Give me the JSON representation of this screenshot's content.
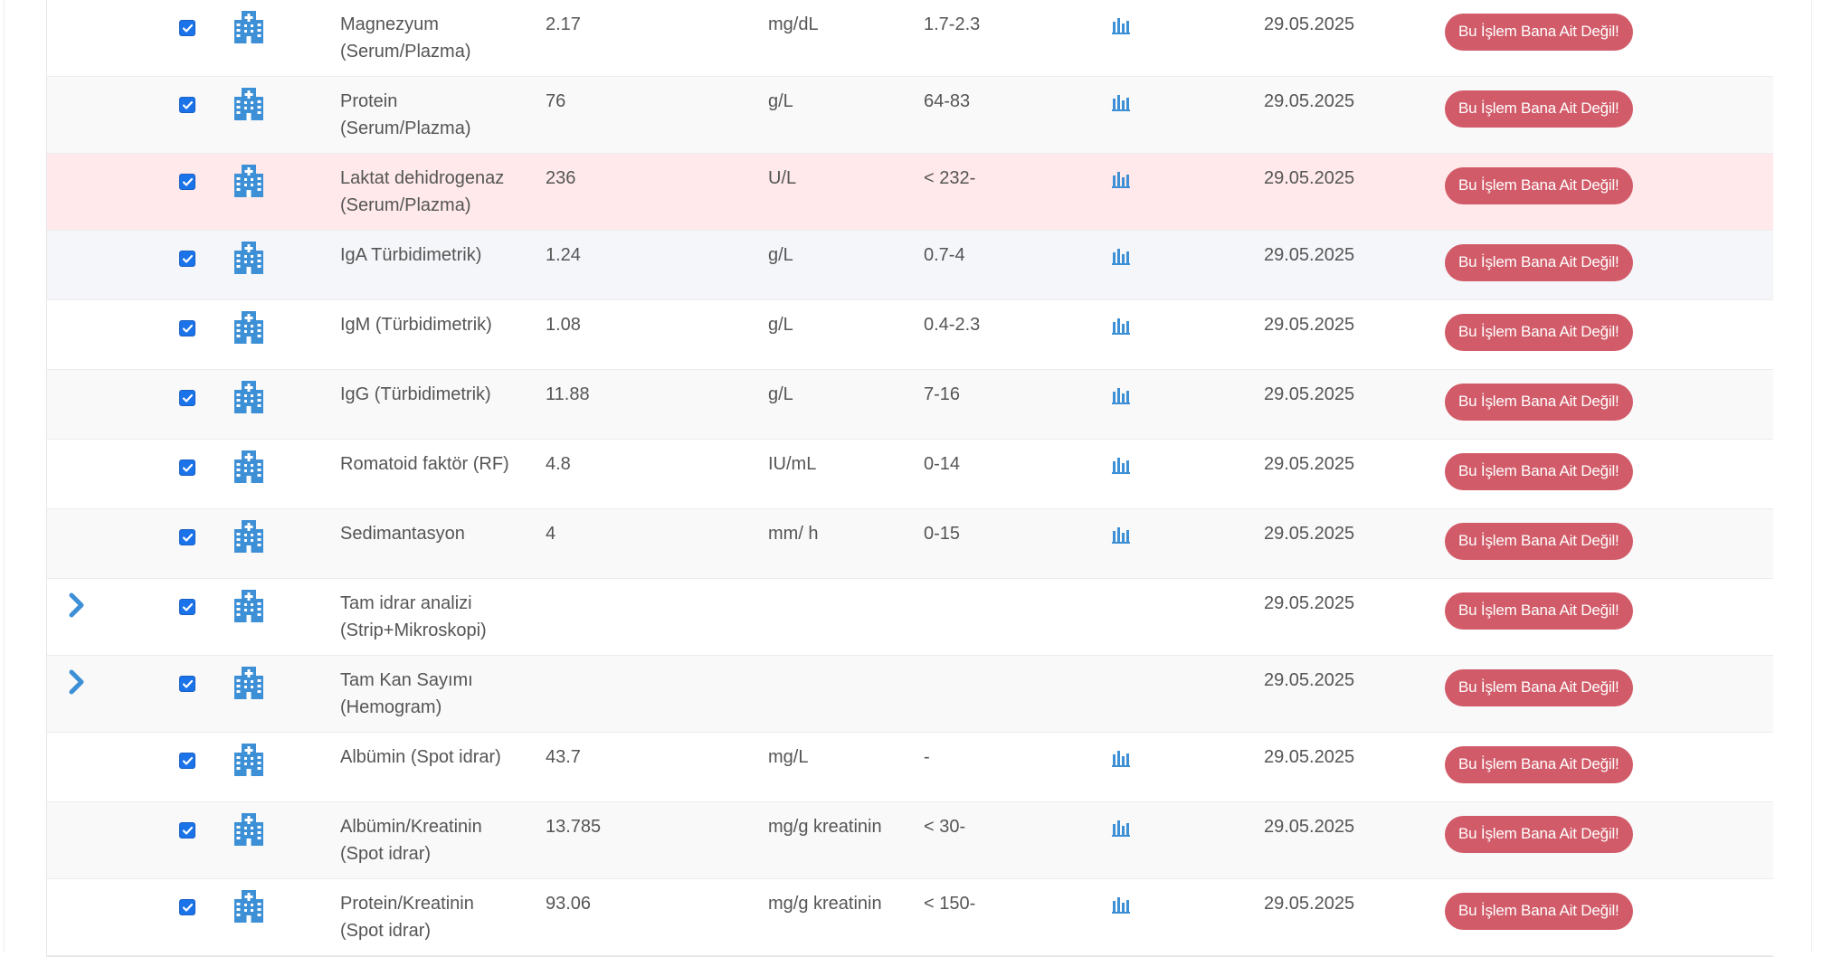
{
  "colors": {
    "accent_blue": "#3d8fd6",
    "checkbox_blue": "#1a73e8",
    "danger_row_bg": "#ffe9ea",
    "button_bg": "#d15b68",
    "text": "#555555"
  },
  "action_label": "Bu İşlem Bana Ait Değil!",
  "rows": [
    {
      "expandable": false,
      "name": [
        "Magnezyum",
        "(Serum/Plazma)"
      ],
      "value": "2.17",
      "unit": "mg/dL",
      "ref": "1.7-2.3",
      "has_chart": true,
      "date": "29.05.2025",
      "checked": true,
      "icon": "hospital-icon",
      "state": "normal"
    },
    {
      "expandable": false,
      "name": [
        "Protein",
        "(Serum/Plazma)"
      ],
      "value": "76",
      "unit": "g/L",
      "ref": "64-83",
      "has_chart": true,
      "date": "29.05.2025",
      "checked": true,
      "icon": "hospital-icon",
      "state": "normal"
    },
    {
      "expandable": false,
      "name": [
        "Laktat dehidrogenaz",
        "(Serum/Plazma)"
      ],
      "value": "236",
      "unit": "U/L",
      "ref": "< 232-",
      "has_chart": true,
      "date": "29.05.2025",
      "checked": true,
      "icon": "hospital-icon",
      "state": "out-of-range"
    },
    {
      "expandable": false,
      "name": [
        "IgA Türbidimetrik)"
      ],
      "value": "1.24",
      "unit": "g/L",
      "ref": "0.7-4",
      "has_chart": true,
      "date": "29.05.2025",
      "checked": true,
      "icon": "hospital-icon",
      "state": "normal"
    },
    {
      "expandable": false,
      "name": [
        "IgM (Türbidimetrik)"
      ],
      "value": "1.08",
      "unit": "g/L",
      "ref": "0.4-2.3",
      "has_chart": true,
      "date": "29.05.2025",
      "checked": true,
      "icon": "hospital-icon",
      "state": "normal"
    },
    {
      "expandable": false,
      "name": [
        "IgG (Türbidimetrik)"
      ],
      "value": "11.88",
      "unit": "g/L",
      "ref": "7-16",
      "has_chart": true,
      "date": "29.05.2025",
      "checked": true,
      "icon": "hospital-icon",
      "state": "normal"
    },
    {
      "expandable": false,
      "name": [
        "Romatoid faktör (RF)"
      ],
      "value": "4.8",
      "unit": "IU/mL",
      "ref": "0-14",
      "has_chart": true,
      "date": "29.05.2025",
      "checked": true,
      "icon": "hospital-icon",
      "state": "normal"
    },
    {
      "expandable": false,
      "name": [
        "Sedimantasyon"
      ],
      "value": "4",
      "unit": "mm/ h",
      "ref": "0-15",
      "has_chart": true,
      "date": "29.05.2025",
      "checked": true,
      "icon": "hospital-icon",
      "state": "normal"
    },
    {
      "expandable": true,
      "name": [
        "Tam idrar analizi",
        "(Strip+Mikroskopi)"
      ],
      "value": "",
      "unit": "",
      "ref": "",
      "has_chart": false,
      "date": "29.05.2025",
      "checked": true,
      "icon": "hospital-icon",
      "state": "normal"
    },
    {
      "expandable": true,
      "name": [
        "Tam Kan Sayımı",
        "(Hemogram)"
      ],
      "value": "",
      "unit": "",
      "ref": "",
      "has_chart": false,
      "date": "29.05.2025",
      "checked": true,
      "icon": "hospital-icon",
      "state": "normal"
    },
    {
      "expandable": false,
      "name": [
        "Albümin (Spot idrar)"
      ],
      "value": "43.7",
      "unit": "mg/L",
      "ref": "-",
      "has_chart": true,
      "date": "29.05.2025",
      "checked": true,
      "icon": "hospital-icon",
      "state": "normal"
    },
    {
      "expandable": false,
      "name": [
        "Albümin/Kreatinin",
        "(Spot idrar)"
      ],
      "value": "13.785",
      "unit": "mg/g kreatinin",
      "ref": "< 30-",
      "has_chart": true,
      "date": "29.05.2025",
      "checked": true,
      "icon": "hospital-icon",
      "state": "normal"
    },
    {
      "expandable": false,
      "name": [
        "Protein/Kreatinin",
        "(Spot idrar)"
      ],
      "value": "93.06",
      "unit": "mg/g kreatinin",
      "ref": "< 150-",
      "has_chart": true,
      "date": "29.05.2025",
      "checked": true,
      "icon": "hospital-icon",
      "state": "normal"
    }
  ]
}
